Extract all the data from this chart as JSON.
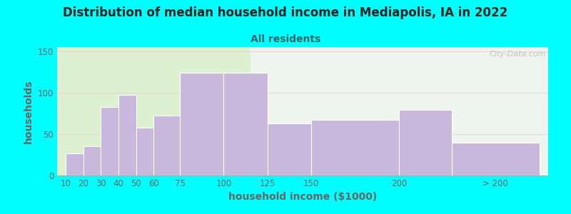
{
  "title": "Distribution of median household income in Mediapolis, IA in 2022",
  "subtitle": "All residents",
  "xlabel": "household income ($1000)",
  "ylabel": "households",
  "bar_color": "#c9b8dc",
  "bar_edge_color": "#c9b8dc",
  "background_color": "#00ffff",
  "plot_bg_left": "#ddf0d0",
  "plot_bg_right": "#eef5ee",
  "values": [
    27,
    35,
    83,
    97,
    58,
    72,
    124,
    124,
    63,
    67,
    79,
    40
  ],
  "bar_lefts": [
    10,
    20,
    30,
    40,
    50,
    60,
    75,
    100,
    125,
    150,
    200,
    230
  ],
  "bar_widths": [
    10,
    10,
    10,
    10,
    10,
    15,
    25,
    25,
    25,
    50,
    30,
    50
  ],
  "xtick_positions": [
    10,
    20,
    30,
    40,
    50,
    60,
    75,
    100,
    125,
    150,
    200,
    255
  ],
  "xtick_labels": [
    "10",
    "20",
    "30",
    "40",
    "50",
    "60",
    "75",
    "100",
    "125",
    "150",
    "200",
    "> 200"
  ],
  "ylim": [
    0,
    155
  ],
  "xlim": [
    5,
    285
  ],
  "yticks": [
    0,
    50,
    100,
    150
  ],
  "green_end_x": 115,
  "watermark": "City-Data.com",
  "title_fontsize": 12,
  "subtitle_fontsize": 10,
  "axis_label_fontsize": 10,
  "subtitle_color": "#336666",
  "title_color": "#222222",
  "tick_color": "#666666"
}
